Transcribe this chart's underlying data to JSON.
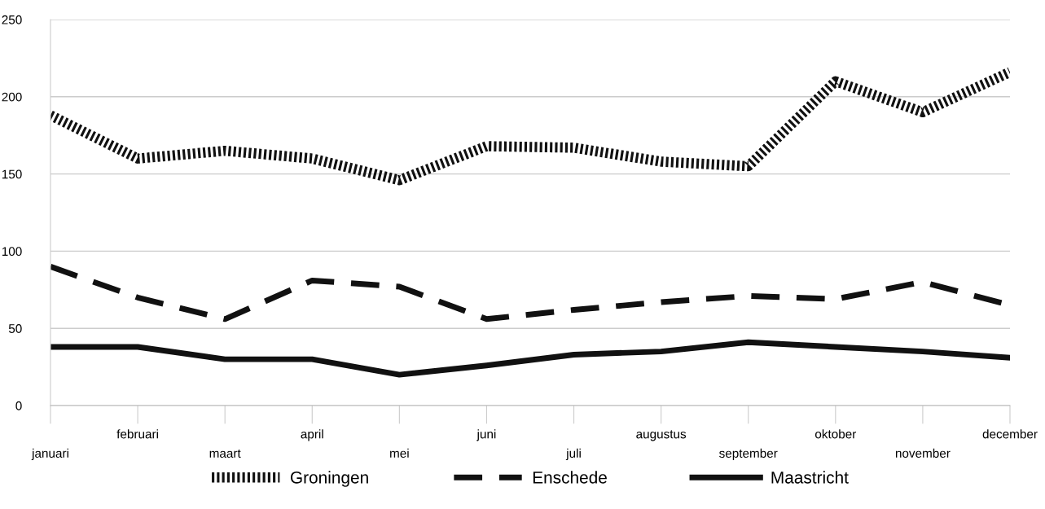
{
  "chart_data": {
    "type": "line",
    "categories": [
      "januari",
      "februari",
      "maart",
      "april",
      "mei",
      "juni",
      "juli",
      "augustus",
      "september",
      "oktober",
      "november",
      "december"
    ],
    "series": [
      {
        "name": "Groningen",
        "color": "#111111",
        "line_style": "dotted",
        "values": [
          188,
          160,
          165,
          160,
          146,
          168,
          167,
          158,
          155,
          210,
          190,
          216
        ]
      },
      {
        "name": "Enschede",
        "color": "#111111",
        "line_style": "dashed",
        "values": [
          90,
          70,
          56,
          81,
          77,
          56,
          62,
          67,
          71,
          69,
          80,
          65
        ]
      },
      {
        "name": "Maastricht",
        "color": "#111111",
        "line_style": "solid",
        "values": [
          38,
          38,
          30,
          30,
          20,
          26,
          33,
          35,
          41,
          38,
          35,
          31
        ]
      }
    ],
    "ylim": [
      0,
      250
    ],
    "yticks": [
      0,
      50,
      100,
      150,
      200,
      250
    ],
    "grid": "y",
    "legend": "bottom",
    "marker": "none"
  }
}
